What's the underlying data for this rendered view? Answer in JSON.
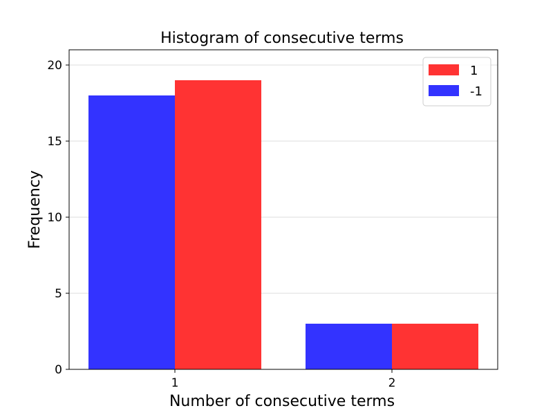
{
  "chart_data": {
    "type": "bar",
    "title": "Histogram of consecutive terms",
    "xlabel": "Number of consecutive terms",
    "ylabel": "Frequency",
    "categories": [
      "1",
      "2"
    ],
    "series": [
      {
        "name": "-1",
        "color": "#3333ff",
        "values": [
          18,
          3
        ]
      },
      {
        "name": "1",
        "color": "#ff3333",
        "values": [
          19,
          3
        ]
      }
    ],
    "legend_order": [
      "1",
      "-1"
    ],
    "legend_position": "top-right",
    "ylim": [
      0,
      21
    ],
    "yticks": [
      0,
      5,
      10,
      15,
      20
    ],
    "grid": {
      "y": true,
      "x": false
    }
  }
}
